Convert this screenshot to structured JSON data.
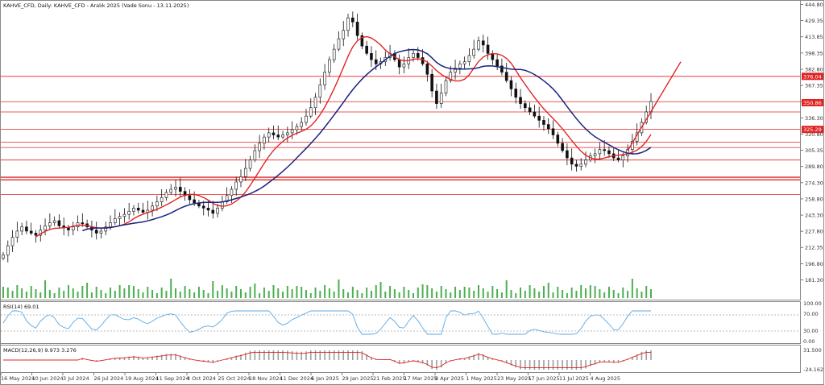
{
  "header": {
    "main_title": "KAHVE_CFD, Daily:  KAHVE_CFD -  Aralık 2025 (Vade Sonu - 13.11.2025)",
    "rsi_label": "RSI(14) 69.01",
    "macd_label": "MACD(12,26,9) 9.973 3.276"
  },
  "colors": {
    "price_line": "#e02424",
    "ma_fast": "#e02424",
    "ma_slow": "#1a237e",
    "rsi_line": "#5aa9e6",
    "volume": "#4caf50",
    "macd_hist": "#9e9e9e",
    "macd_signal": "#e02424",
    "tag_bg": "#e02424"
  },
  "chart_data": [
    {
      "type": "candlestick",
      "title": "KAHVE_CFD, Daily:  KAHVE_CFD -  Aralık 2025 (Vade Sonu - 13.11.2025)",
      "y_ticks": [
        "444.80",
        "429.35",
        "413.85",
        "398.35",
        "382.80",
        "367.35",
        "351.80",
        "336.30",
        "320.80",
        "305.35",
        "289.80",
        "274.30",
        "258.80",
        "243.30",
        "227.80",
        "212.35",
        "196.80",
        "181.30"
      ],
      "ylim": [
        174.0,
        446.0
      ],
      "x_ticks": [
        "16 May 2024",
        "10 Jun 2024",
        "3 Jul 2024",
        "26 Jul 2024",
        "19 Aug 2024",
        "11 Sep 2024",
        "4 Oct 2024",
        "25 Oct 2024",
        "18 Nov 2024",
        "11 Dec 2024",
        "6 Jan 2025",
        "29 Jan 2025",
        "21 Feb 2025",
        "17 Mar 2025",
        "8 Apr 2025",
        "1 May 2025",
        "23 May 2025",
        "17 Jun 2025",
        "11 Jul 2025",
        "4 Aug 2025"
      ],
      "price_tags": [
        "376.04",
        "350.86",
        "325.29"
      ],
      "horizontal_levels": [
        376.04,
        351.8,
        342.0,
        325.29,
        313.0,
        308.0,
        296.0,
        279.5,
        277.0,
        263.0
      ],
      "close_series": [
        205,
        214,
        222,
        228,
        232,
        228,
        226,
        224,
        229,
        233,
        236,
        238,
        233,
        231,
        229,
        232,
        236,
        235,
        232,
        229,
        226,
        228,
        232,
        236,
        240,
        242,
        244,
        247,
        250,
        248,
        246,
        248,
        252,
        256,
        260,
        265,
        268,
        270,
        266,
        262,
        258,
        255,
        252,
        250,
        248,
        245,
        250,
        256,
        262,
        268,
        275,
        280,
        288,
        296,
        305,
        312,
        318,
        322,
        320,
        318,
        320,
        322,
        325,
        328,
        332,
        338,
        346,
        356,
        368,
        380,
        392,
        402,
        412,
        420,
        432,
        428,
        415,
        405,
        398,
        392,
        388,
        390,
        394,
        398,
        392,
        385,
        388,
        394,
        398,
        394,
        388,
        378,
        362,
        350,
        360,
        372,
        380,
        384,
        388,
        390,
        396,
        402,
        410,
        406,
        398,
        392,
        386,
        380,
        372,
        364,
        356,
        350,
        346,
        342,
        338,
        334,
        330,
        326,
        320,
        312,
        305,
        298,
        292,
        290,
        292,
        296,
        300,
        302,
        306,
        305,
        302,
        298,
        296,
        300,
        306,
        314,
        322,
        332,
        342,
        352
      ],
      "ma_fast": [
        null,
        null,
        null,
        null,
        null,
        null,
        null,
        null,
        null,
        null,
        null,
        null,
        null,
        null,
        null,
        null,
        null,
        null,
        null,
        null,
        null,
        null,
        null,
        null,
        null,
        null,
        null,
        null,
        null,
        null,
        null,
        null,
        null,
        null,
        null,
        null,
        null,
        null,
        null,
        null,
        null,
        null,
        null,
        null,
        null,
        null,
        null,
        null,
        null,
        null,
        null,
        null,
        null,
        null,
        null,
        null,
        null,
        null,
        null,
        null,
        null,
        null,
        null,
        null,
        null,
        null,
        null,
        null,
        null,
        null,
        null,
        null,
        null,
        null,
        null,
        null,
        null,
        null,
        null,
        null,
        null,
        null,
        null,
        null,
        null,
        null,
        null,
        null,
        null,
        null,
        null,
        null,
        null,
        null,
        null,
        null,
        null,
        null,
        null,
        null,
        null,
        null,
        null,
        null,
        null,
        null,
        null,
        null,
        null,
        null,
        null,
        null,
        null,
        null,
        null,
        null,
        null,
        null,
        null,
        null,
        null,
        null,
        null,
        null,
        null,
        null,
        null,
        null,
        null,
        null,
        null,
        null,
        null,
        null,
        null,
        null,
        null,
        null,
        null,
        null
      ],
      "x_range": [
        "16 May 2024",
        "21 Aug 2025"
      ]
    }
  ]
}
